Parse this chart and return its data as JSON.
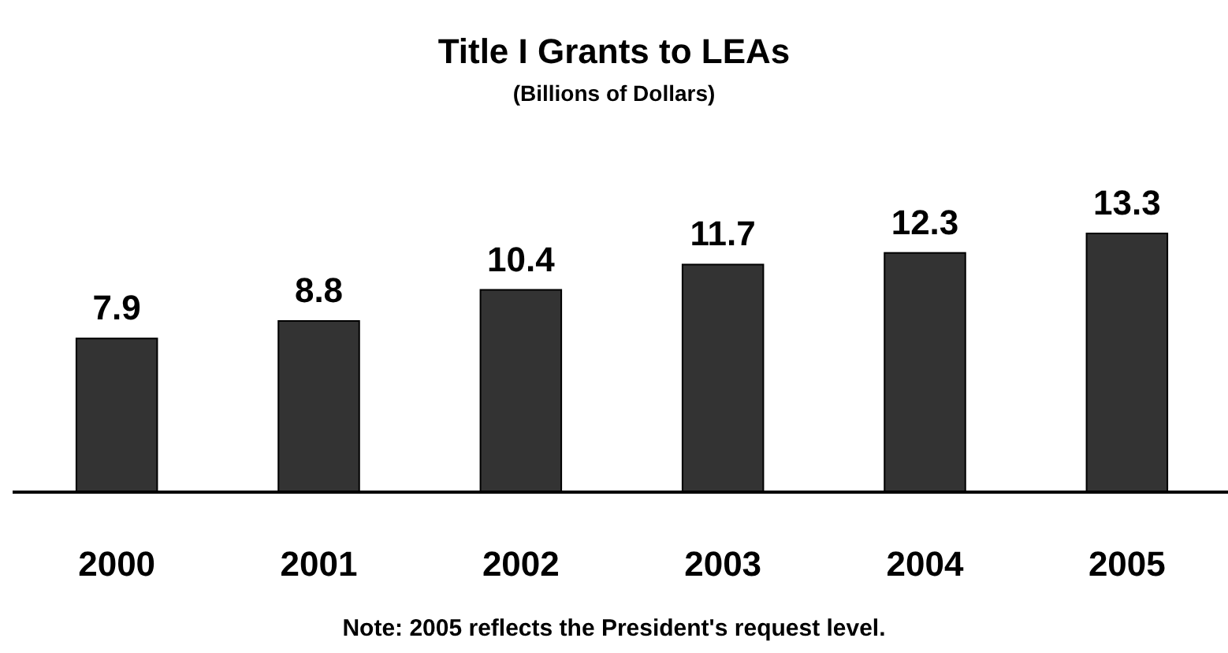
{
  "chart_data": {
    "type": "bar",
    "title": "Title I Grants to LEAs",
    "subtitle": "(Billions of Dollars)",
    "categories": [
      "2000",
      "2001",
      "2002",
      "2003",
      "2004",
      "2005"
    ],
    "values": [
      7.9,
      8.8,
      10.4,
      11.7,
      12.3,
      13.3
    ],
    "color": "#333333",
    "data_labels": true,
    "tick_labels": "x",
    "annotations": [
      "Note:  2005 reflects the President's request level."
    ]
  }
}
